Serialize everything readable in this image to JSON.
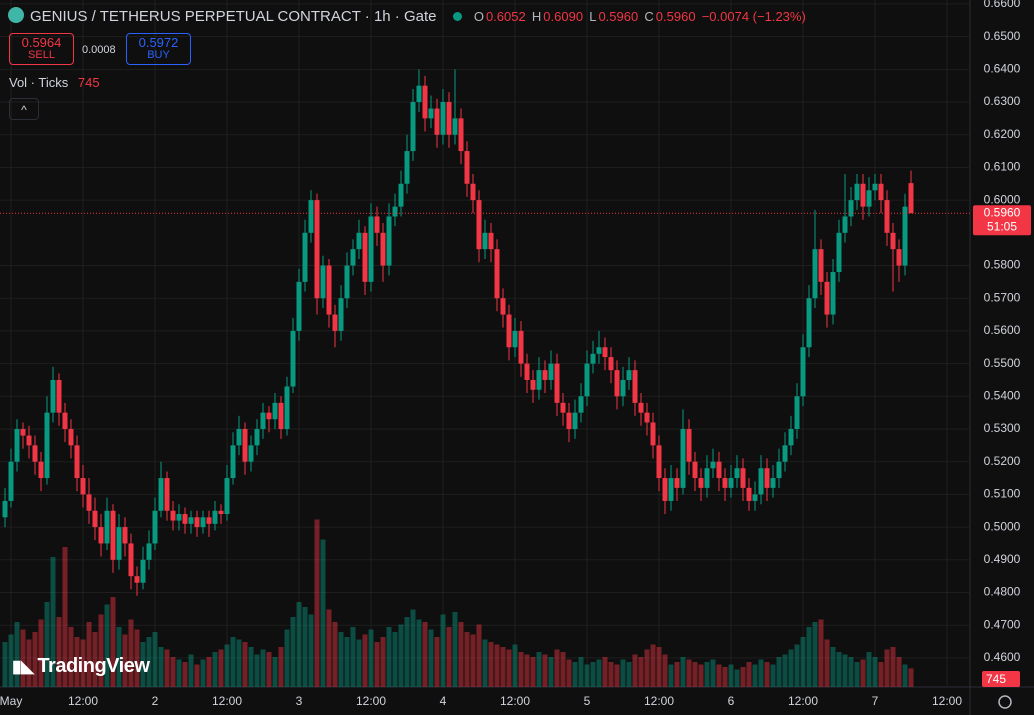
{
  "header": {
    "title": "GENIUS / TETHERUS PERPETUAL CONTRACT · 1h · Gate",
    "o_label": "O",
    "o": "0.6052",
    "h_label": "H",
    "h": "0.6090",
    "l_label": "L",
    "l": "0.5960",
    "c_label": "C",
    "c": "0.5960",
    "change": "−0.0074 (−1.23%)",
    "sell_price": "0.5964",
    "sell": "SELL",
    "spread": "0.0008",
    "buy_price": "0.5972",
    "buy": "BUY",
    "vol_label": "Vol · Ticks",
    "logo": "TradingView"
  },
  "chart_data": {
    "type": "candlestick",
    "up_color": "#089981",
    "down_color": "#f23645",
    "ylim": [
      0.4511,
      0.6612
    ],
    "yticks": [
      {
        "value": 0.46,
        "label": "0.4600"
      },
      {
        "value": 0.47,
        "label": "0.4700"
      },
      {
        "value": 0.48,
        "label": "0.4800"
      },
      {
        "value": 0.49,
        "label": "0.4900"
      },
      {
        "value": 0.5,
        "label": "0.5000"
      },
      {
        "value": 0.51,
        "label": "0.5100"
      },
      {
        "value": 0.52,
        "label": "0.5200"
      },
      {
        "value": 0.53,
        "label": "0.5300"
      },
      {
        "value": 0.54,
        "label": "0.5400"
      },
      {
        "value": 0.55,
        "label": "0.5500"
      },
      {
        "value": 0.56,
        "label": "0.5600"
      },
      {
        "value": 0.57,
        "label": "0.5700"
      },
      {
        "value": 0.58,
        "label": "0.5800"
      },
      {
        "value": 0.6,
        "label": "0.6000"
      },
      {
        "value": 0.61,
        "label": "0.6100"
      },
      {
        "value": 0.62,
        "label": "0.6200"
      },
      {
        "value": 0.63,
        "label": "0.6300"
      },
      {
        "value": 0.64,
        "label": "0.6400"
      },
      {
        "value": 0.65,
        "label": "0.6500"
      },
      {
        "value": 0.66,
        "label": "0.6600"
      }
    ],
    "xticks": [
      {
        "value": 1,
        "label": "May"
      },
      {
        "value": 13,
        "label": "12:00"
      },
      {
        "value": 25,
        "label": "2"
      },
      {
        "value": 37,
        "label": "12:00"
      },
      {
        "value": 49,
        "label": "3"
      },
      {
        "value": 61,
        "label": "12:00"
      },
      {
        "value": 73,
        "label": "4"
      },
      {
        "value": 85,
        "label": "12:00"
      },
      {
        "value": 97,
        "label": "5"
      },
      {
        "value": 109,
        "label": "12:00"
      },
      {
        "value": 121,
        "label": "6"
      },
      {
        "value": 133,
        "label": "12:00"
      },
      {
        "value": 145,
        "label": "7"
      },
      {
        "value": 157,
        "label": "12:00"
      }
    ],
    "last_price": {
      "value": 0.596,
      "label": "0.5960"
    },
    "countdown": "51:05",
    "candles": [
      [
        0.503,
        0.512,
        0.5,
        0.508
      ],
      [
        0.508,
        0.524,
        0.506,
        0.52
      ],
      [
        0.52,
        0.533,
        0.517,
        0.53
      ],
      [
        0.53,
        0.532,
        0.524,
        0.528
      ],
      [
        0.528,
        0.531,
        0.521,
        0.525
      ],
      [
        0.525,
        0.528,
        0.516,
        0.52
      ],
      [
        0.52,
        0.523,
        0.511,
        0.515
      ],
      [
        0.515,
        0.54,
        0.513,
        0.535
      ],
      [
        0.535,
        0.549,
        0.532,
        0.545
      ],
      [
        0.545,
        0.547,
        0.531,
        0.535
      ],
      [
        0.535,
        0.538,
        0.526,
        0.53
      ],
      [
        0.53,
        0.533,
        0.521,
        0.525
      ],
      [
        0.525,
        0.528,
        0.511,
        0.515
      ],
      [
        0.515,
        0.519,
        0.506,
        0.51
      ],
      [
        0.51,
        0.515,
        0.501,
        0.505
      ],
      [
        0.505,
        0.509,
        0.496,
        0.5
      ],
      [
        0.5,
        0.504,
        0.491,
        0.495
      ],
      [
        0.495,
        0.509,
        0.493,
        0.505
      ],
      [
        0.505,
        0.507,
        0.486,
        0.49
      ],
      [
        0.49,
        0.504,
        0.487,
        0.5
      ],
      [
        0.5,
        0.503,
        0.491,
        0.495
      ],
      [
        0.495,
        0.498,
        0.481,
        0.485
      ],
      [
        0.485,
        0.488,
        0.479,
        0.483
      ],
      [
        0.483,
        0.494,
        0.481,
        0.49
      ],
      [
        0.49,
        0.499,
        0.487,
        0.495
      ],
      [
        0.495,
        0.509,
        0.493,
        0.505
      ],
      [
        0.505,
        0.52,
        0.503,
        0.515
      ],
      [
        0.515,
        0.517,
        0.502,
        0.505
      ],
      [
        0.505,
        0.508,
        0.499,
        0.502
      ],
      [
        0.502,
        0.507,
        0.499,
        0.504
      ],
      [
        0.504,
        0.506,
        0.498,
        0.501
      ],
      [
        0.501,
        0.505,
        0.498,
        0.503
      ],
      [
        0.503,
        0.505,
        0.497,
        0.5
      ],
      [
        0.5,
        0.505,
        0.498,
        0.503
      ],
      [
        0.503,
        0.505,
        0.497,
        0.501
      ],
      [
        0.501,
        0.508,
        0.499,
        0.505
      ],
      [
        0.505,
        0.507,
        0.501,
        0.504
      ],
      [
        0.504,
        0.519,
        0.502,
        0.515
      ],
      [
        0.515,
        0.529,
        0.513,
        0.525
      ],
      [
        0.525,
        0.534,
        0.522,
        0.53
      ],
      [
        0.53,
        0.532,
        0.516,
        0.52
      ],
      [
        0.52,
        0.528,
        0.517,
        0.525
      ],
      [
        0.525,
        0.533,
        0.522,
        0.53
      ],
      [
        0.53,
        0.538,
        0.527,
        0.535
      ],
      [
        0.535,
        0.537,
        0.529,
        0.533
      ],
      [
        0.533,
        0.541,
        0.53,
        0.538
      ],
      [
        0.538,
        0.54,
        0.527,
        0.53
      ],
      [
        0.53,
        0.546,
        0.528,
        0.543
      ],
      [
        0.543,
        0.564,
        0.541,
        0.56
      ],
      [
        0.56,
        0.579,
        0.557,
        0.575
      ],
      [
        0.575,
        0.594,
        0.572,
        0.59
      ],
      [
        0.59,
        0.603,
        0.587,
        0.6
      ],
      [
        0.6,
        0.602,
        0.565,
        0.57
      ],
      [
        0.57,
        0.583,
        0.567,
        0.58
      ],
      [
        0.58,
        0.582,
        0.561,
        0.565
      ],
      [
        0.565,
        0.568,
        0.555,
        0.56
      ],
      [
        0.56,
        0.574,
        0.557,
        0.57
      ],
      [
        0.57,
        0.584,
        0.567,
        0.58
      ],
      [
        0.58,
        0.588,
        0.577,
        0.585
      ],
      [
        0.585,
        0.594,
        0.582,
        0.59
      ],
      [
        0.59,
        0.592,
        0.571,
        0.575
      ],
      [
        0.575,
        0.599,
        0.572,
        0.595
      ],
      [
        0.595,
        0.598,
        0.586,
        0.59
      ],
      [
        0.59,
        0.593,
        0.575,
        0.58
      ],
      [
        0.58,
        0.599,
        0.577,
        0.595
      ],
      [
        0.595,
        0.602,
        0.592,
        0.598
      ],
      [
        0.598,
        0.609,
        0.595,
        0.605
      ],
      [
        0.605,
        0.62,
        0.602,
        0.615
      ],
      [
        0.615,
        0.634,
        0.612,
        0.63
      ],
      [
        0.63,
        0.64,
        0.627,
        0.635
      ],
      [
        0.635,
        0.638,
        0.621,
        0.625
      ],
      [
        0.625,
        0.632,
        0.622,
        0.628
      ],
      [
        0.628,
        0.631,
        0.616,
        0.62
      ],
      [
        0.62,
        0.634,
        0.617,
        0.63
      ],
      [
        0.63,
        0.633,
        0.616,
        0.62
      ],
      [
        0.62,
        0.64,
        0.617,
        0.625
      ],
      [
        0.625,
        0.628,
        0.611,
        0.615
      ],
      [
        0.615,
        0.618,
        0.601,
        0.605
      ],
      [
        0.605,
        0.608,
        0.596,
        0.6
      ],
      [
        0.6,
        0.603,
        0.581,
        0.585
      ],
      [
        0.585,
        0.594,
        0.582,
        0.59
      ],
      [
        0.59,
        0.593,
        0.581,
        0.585
      ],
      [
        0.585,
        0.588,
        0.566,
        0.57
      ],
      [
        0.57,
        0.573,
        0.561,
        0.565
      ],
      [
        0.565,
        0.568,
        0.551,
        0.555
      ],
      [
        0.555,
        0.564,
        0.552,
        0.56
      ],
      [
        0.56,
        0.563,
        0.546,
        0.55
      ],
      [
        0.55,
        0.553,
        0.541,
        0.545
      ],
      [
        0.545,
        0.548,
        0.538,
        0.542
      ],
      [
        0.542,
        0.552,
        0.539,
        0.548
      ],
      [
        0.548,
        0.551,
        0.541,
        0.545
      ],
      [
        0.545,
        0.554,
        0.542,
        0.55
      ],
      [
        0.55,
        0.553,
        0.534,
        0.538
      ],
      [
        0.538,
        0.541,
        0.531,
        0.535
      ],
      [
        0.535,
        0.538,
        0.526,
        0.53
      ],
      [
        0.53,
        0.539,
        0.527,
        0.535
      ],
      [
        0.535,
        0.544,
        0.532,
        0.54
      ],
      [
        0.54,
        0.554,
        0.537,
        0.55
      ],
      [
        0.55,
        0.557,
        0.547,
        0.553
      ],
      [
        0.553,
        0.56,
        0.55,
        0.555
      ],
      [
        0.555,
        0.558,
        0.548,
        0.552
      ],
      [
        0.552,
        0.555,
        0.544,
        0.548
      ],
      [
        0.548,
        0.551,
        0.536,
        0.54
      ],
      [
        0.54,
        0.549,
        0.537,
        0.545
      ],
      [
        0.545,
        0.552,
        0.542,
        0.548
      ],
      [
        0.548,
        0.551,
        0.534,
        0.538
      ],
      [
        0.538,
        0.541,
        0.531,
        0.535
      ],
      [
        0.535,
        0.538,
        0.528,
        0.532
      ],
      [
        0.532,
        0.535,
        0.521,
        0.525
      ],
      [
        0.525,
        0.528,
        0.511,
        0.515
      ],
      [
        0.515,
        0.518,
        0.504,
        0.508
      ],
      [
        0.508,
        0.519,
        0.505,
        0.515
      ],
      [
        0.515,
        0.518,
        0.508,
        0.512
      ],
      [
        0.512,
        0.536,
        0.51,
        0.53
      ],
      [
        0.53,
        0.533,
        0.516,
        0.52
      ],
      [
        0.52,
        0.523,
        0.511,
        0.515
      ],
      [
        0.515,
        0.518,
        0.508,
        0.512
      ],
      [
        0.512,
        0.522,
        0.509,
        0.518
      ],
      [
        0.518,
        0.524,
        0.515,
        0.52
      ],
      [
        0.52,
        0.523,
        0.511,
        0.515
      ],
      [
        0.515,
        0.518,
        0.508,
        0.512
      ],
      [
        0.512,
        0.519,
        0.509,
        0.515
      ],
      [
        0.515,
        0.522,
        0.512,
        0.518
      ],
      [
        0.518,
        0.521,
        0.508,
        0.512
      ],
      [
        0.512,
        0.515,
        0.505,
        0.508
      ],
      [
        0.508,
        0.514,
        0.505,
        0.51
      ],
      [
        0.51,
        0.522,
        0.507,
        0.518
      ],
      [
        0.518,
        0.521,
        0.508,
        0.512
      ],
      [
        0.512,
        0.519,
        0.509,
        0.515
      ],
      [
        0.515,
        0.524,
        0.512,
        0.52
      ],
      [
        0.52,
        0.529,
        0.517,
        0.525
      ],
      [
        0.525,
        0.534,
        0.522,
        0.53
      ],
      [
        0.53,
        0.544,
        0.527,
        0.54
      ],
      [
        0.54,
        0.559,
        0.537,
        0.555
      ],
      [
        0.555,
        0.574,
        0.552,
        0.57
      ],
      [
        0.57,
        0.597,
        0.567,
        0.585
      ],
      [
        0.585,
        0.588,
        0.571,
        0.575
      ],
      [
        0.575,
        0.578,
        0.561,
        0.565
      ],
      [
        0.565,
        0.582,
        0.562,
        0.578
      ],
      [
        0.578,
        0.594,
        0.575,
        0.59
      ],
      [
        0.59,
        0.608,
        0.587,
        0.595
      ],
      [
        0.595,
        0.604,
        0.592,
        0.6
      ],
      [
        0.6,
        0.608,
        0.597,
        0.605
      ],
      [
        0.605,
        0.608,
        0.594,
        0.598
      ],
      [
        0.598,
        0.607,
        0.595,
        0.603
      ],
      [
        0.603,
        0.608,
        0.6,
        0.605
      ],
      [
        0.605,
        0.608,
        0.596,
        0.6
      ],
      [
        0.6,
        0.603,
        0.586,
        0.59
      ],
      [
        0.59,
        0.593,
        0.572,
        0.585
      ],
      [
        0.585,
        0.588,
        0.575,
        0.58
      ],
      [
        0.58,
        0.602,
        0.577,
        0.598
      ],
      [
        0.6052,
        0.609,
        0.596,
        0.596
      ]
    ],
    "volume": [
      1800,
      2100,
      2600,
      2300,
      1900,
      2200,
      2700,
      3400,
      5200,
      2800,
      5600,
      2400,
      2000,
      1900,
      2600,
      2200,
      2900,
      3300,
      3600,
      2400,
      2100,
      2700,
      2300,
      1800,
      2000,
      2200,
      1600,
      1500,
      1200,
      1100,
      1000,
      1300,
      900,
      1100,
      1200,
      1400,
      1500,
      1700,
      2000,
      1900,
      1800,
      1600,
      1300,
      1500,
      1400,
      1200,
      1600,
      2300,
      2800,
      3400,
      3200,
      2900,
      6700,
      5900,
      3100,
      2600,
      2200,
      2000,
      2400,
      1900,
      2100,
      2300,
      1800,
      2000,
      2400,
      2200,
      2500,
      2800,
      3100,
      2700,
      2600,
      2300,
      2000,
      2900,
      2400,
      3000,
      2600,
      2200,
      2100,
      2500,
      1900,
      1800,
      1700,
      1600,
      1500,
      1700,
      1400,
      1300,
      1200,
      1400,
      1300,
      1200,
      1500,
      1400,
      1100,
      1000,
      1200,
      900,
      1000,
      1100,
      1200,
      1000,
      900,
      1100,
      1000,
      1300,
      1200,
      1500,
      1700,
      1600,
      1300,
      900,
      1000,
      1200,
      1100,
      1000,
      900,
      1000,
      1100,
      900,
      800,
      900,
      700,
      800,
      1000,
      900,
      1100,
      1000,
      900,
      1200,
      1300,
      1500,
      1700,
      2000,
      2400,
      2600,
      2700,
      1900,
      1600,
      1400,
      1300,
      1200,
      1000,
      1100,
      1400,
      1200,
      1000,
      1500,
      1600,
      1200,
      900,
      745
    ]
  }
}
